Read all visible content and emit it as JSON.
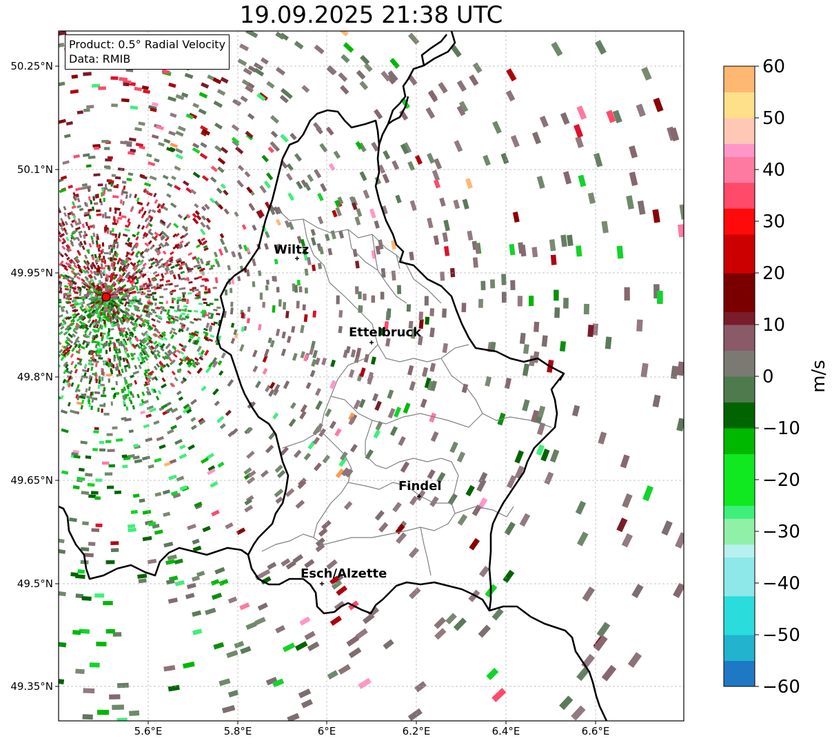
{
  "title": "19.09.2025 21:38 UTC",
  "info": {
    "product": "Product: 0.5° Radial Velocity",
    "source": "Data: RMIB"
  },
  "map": {
    "lon_range": [
      5.4,
      6.8
    ],
    "lat_range": [
      49.3,
      50.3
    ],
    "x_ticks": [
      "5.6°E",
      "5.8°E",
      "6°E",
      "6.2°E",
      "6.4°E",
      "6.6°E"
    ],
    "y_ticks": [
      "50.25°N",
      "50.1°N",
      "49.95°N",
      "49.8°N",
      "49.65°N",
      "49.5°N",
      "49.35°N"
    ],
    "grid": "dashed",
    "radar_site": {
      "lon": 5.505,
      "lat": 49.914,
      "marker_color": "#ff0000"
    },
    "cities": [
      {
        "name": "Wiltz",
        "lon": 5.93,
        "lat": 49.97
      },
      {
        "name": "Ettelbruck",
        "lon": 6.1,
        "lat": 49.85
      },
      {
        "name": "Findel",
        "lon": 6.21,
        "lat": 49.63
      },
      {
        "name": "Esch/Alzette",
        "lon": 5.99,
        "lat": 49.5
      }
    ]
  },
  "colorbar": {
    "label": "m/s",
    "min": -60,
    "max": 60,
    "tick_labels": [
      "60",
      "50",
      "40",
      "30",
      "20",
      "10",
      "0",
      "−10",
      "−20",
      "−30",
      "−40",
      "−50",
      "−60"
    ],
    "stops": [
      {
        "v": -60,
        "c": "#1f78c4"
      },
      {
        "v": -55,
        "c": "#22b3cf"
      },
      {
        "v": -50,
        "c": "#2adcdc"
      },
      {
        "v": -42,
        "c": "#8ee8ea"
      },
      {
        "v": -36,
        "c": "#b8f0f0"
      },
      {
        "v": -32,
        "c": "#90f0a8"
      },
      {
        "v": -28,
        "c": "#3ef07a"
      },
      {
        "v": -24,
        "c": "#10e820"
      },
      {
        "v": -16,
        "c": "#00b800"
      },
      {
        "v": -10,
        "c": "#006400"
      },
      {
        "v": -6,
        "c": "#4e7a4e"
      },
      {
        "v": 0,
        "c": "#7a7a72"
      },
      {
        "v": 5,
        "c": "#8a5a68"
      },
      {
        "v": 9,
        "c": "#7a1c2a"
      },
      {
        "v": 12,
        "c": "#7a0000"
      },
      {
        "v": 20,
        "c": "#cc0000"
      },
      {
        "v": 28,
        "c": "#ff0a0a"
      },
      {
        "v": 32,
        "c": "#ff4a6a"
      },
      {
        "v": 38,
        "c": "#ff7aa0"
      },
      {
        "v": 42,
        "c": "#ff96c8"
      },
      {
        "v": 46,
        "c": "#ffc8b4"
      },
      {
        "v": 50,
        "c": "#ffe08a"
      },
      {
        "v": 56,
        "c": "#ffb872"
      },
      {
        "v": 60,
        "c": "#ff9a52"
      }
    ]
  }
}
